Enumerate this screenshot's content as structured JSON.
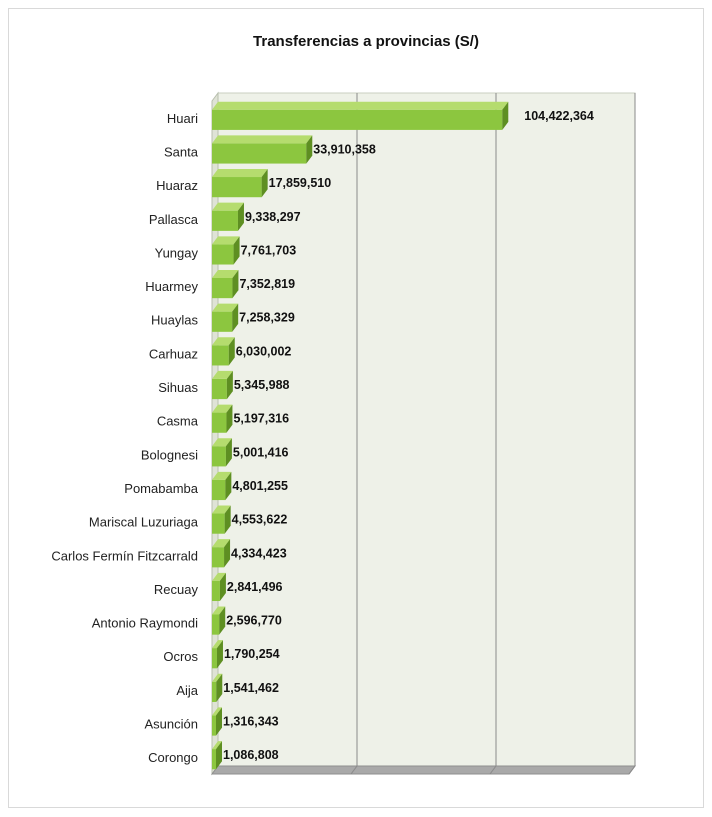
{
  "chart_data": {
    "type": "bar",
    "orientation": "horizontal",
    "title": "Transferencias a provincias (S/)",
    "categories": [
      "Huari",
      "Santa",
      "Huaraz",
      "Pallasca",
      "Yungay",
      "Huarmey",
      "Huaylas",
      "Carhuaz",
      "Sihuas",
      "Casma",
      "Bolognesi",
      "Pomabamba",
      "Mariscal Luzuriaga",
      "Carlos Fermín Fitzcarrald",
      "Recuay",
      "Antonio Raymondi",
      "Ocros",
      "Aija",
      "Asunción",
      "Corongo"
    ],
    "values": [
      104422364,
      33910358,
      17859510,
      9338297,
      7761703,
      7352819,
      7258329,
      6030002,
      5345988,
      5197316,
      5001416,
      4801255,
      4553622,
      4334423,
      2841496,
      2596770,
      1790254,
      1541462,
      1316343,
      1086808
    ],
    "value_labels": [
      "104,422,364",
      "33,910,358",
      "17,859,510",
      "9,338,297",
      "7,761,703",
      "7,352,819",
      "7,258,329",
      "6,030,002",
      "5,345,988",
      "5,197,316",
      "5,001,416",
      "4,801,255",
      "4,553,622",
      "4,334,423",
      "2,841,496",
      "2,596,770",
      "1,790,254",
      "1,541,462",
      "1,316,343",
      "1,086,808"
    ],
    "xlim": [
      0,
      150000000
    ],
    "grid": true,
    "legend": "none",
    "colors": {
      "bar_front": "#8cc63f",
      "bar_top": "#b5dc6e",
      "bar_side": "#5e8f22",
      "wall": "#eef1e8"
    }
  }
}
